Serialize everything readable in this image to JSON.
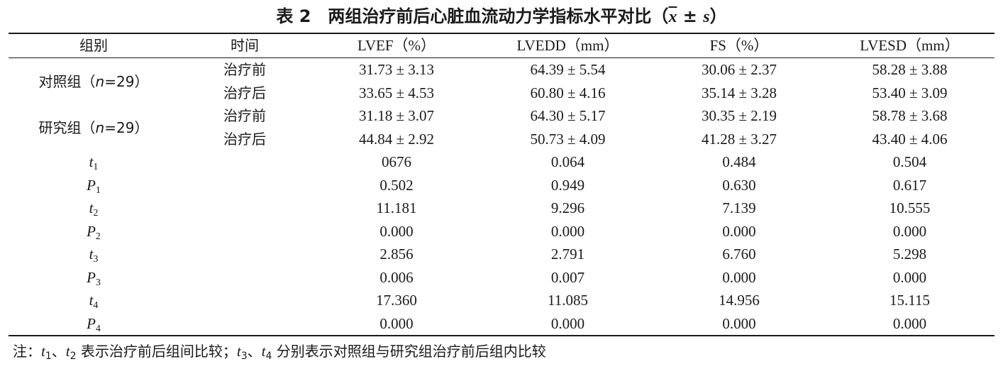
{
  "title": {
    "main": "表 2　两组治疗前后心脏血流动力学指标水平对比（",
    "xbar": "x",
    "pm": " ± ",
    "s": "s",
    "close": "）"
  },
  "columns": [
    "组别",
    "时间",
    "LVEF（%）",
    "LVEDD（mm）",
    "FS（%）",
    "LVESD（mm）"
  ],
  "groups": [
    {
      "name_pre": "对照组（",
      "n_label": "n",
      "name_post": "=29）",
      "rows": [
        {
          "time": "治疗前",
          "values": [
            "31.73 ± 3.13",
            "64.39 ± 5.54",
            "30.06 ± 2.37",
            "58.28 ± 3.88"
          ]
        },
        {
          "time": "治疗后",
          "values": [
            "33.65 ± 4.53",
            "60.80 ± 4.16",
            "35.14 ± 3.28",
            "53.40 ± 3.09"
          ]
        }
      ]
    },
    {
      "name_pre": "研究组（",
      "n_label": "n",
      "name_post": "=29）",
      "rows": [
        {
          "time": "治疗前",
          "values": [
            "31.18 ± 3.07",
            "64.30 ± 5.17",
            "30.35 ± 2.19",
            "58.78 ± 3.68"
          ]
        },
        {
          "time": "治疗后",
          "values": [
            "44.84 ± 2.92",
            "50.73 ± 4.09",
            "41.28 ± 3.27",
            "43.40 ± 4.06"
          ]
        }
      ]
    }
  ],
  "stats": [
    {
      "sym": "t",
      "sub": "1",
      "values": [
        "0676",
        "0.064",
        "0.484",
        "0.504"
      ]
    },
    {
      "sym": "P",
      "sub": "1",
      "values": [
        "0.502",
        "0.949",
        "0.630",
        "0.617"
      ]
    },
    {
      "sym": "t",
      "sub": "2",
      "values": [
        "11.181",
        "9.296",
        "7.139",
        "10.555"
      ]
    },
    {
      "sym": "P",
      "sub": "2",
      "values": [
        "0.000",
        "0.000",
        "0.000",
        "0.000"
      ]
    },
    {
      "sym": "t",
      "sub": "3",
      "values": [
        "2.856",
        "2.791",
        "6.760",
        "5.298"
      ]
    },
    {
      "sym": "P",
      "sub": "3",
      "values": [
        "0.006",
        "0.007",
        "0.000",
        "0.000"
      ]
    },
    {
      "sym": "t",
      "sub": "4",
      "values": [
        "17.360",
        "11.085",
        "14.956",
        "15.115"
      ]
    },
    {
      "sym": "P",
      "sub": "4",
      "values": [
        "0.000",
        "0.000",
        "0.000",
        "0.000"
      ]
    }
  ],
  "note": {
    "prefix": "注：",
    "t1": "t",
    "t1_sub": "1",
    "sep1": "、",
    "t2": "t",
    "t2_sub": "2",
    "text1": " 表示治疗前后组间比较；",
    "t3": "t",
    "t3_sub": "3",
    "sep2": "、",
    "t4": "t",
    "t4_sub": "4",
    "text2": " 分别表示对照组与研究组治疗前后组内比较"
  }
}
